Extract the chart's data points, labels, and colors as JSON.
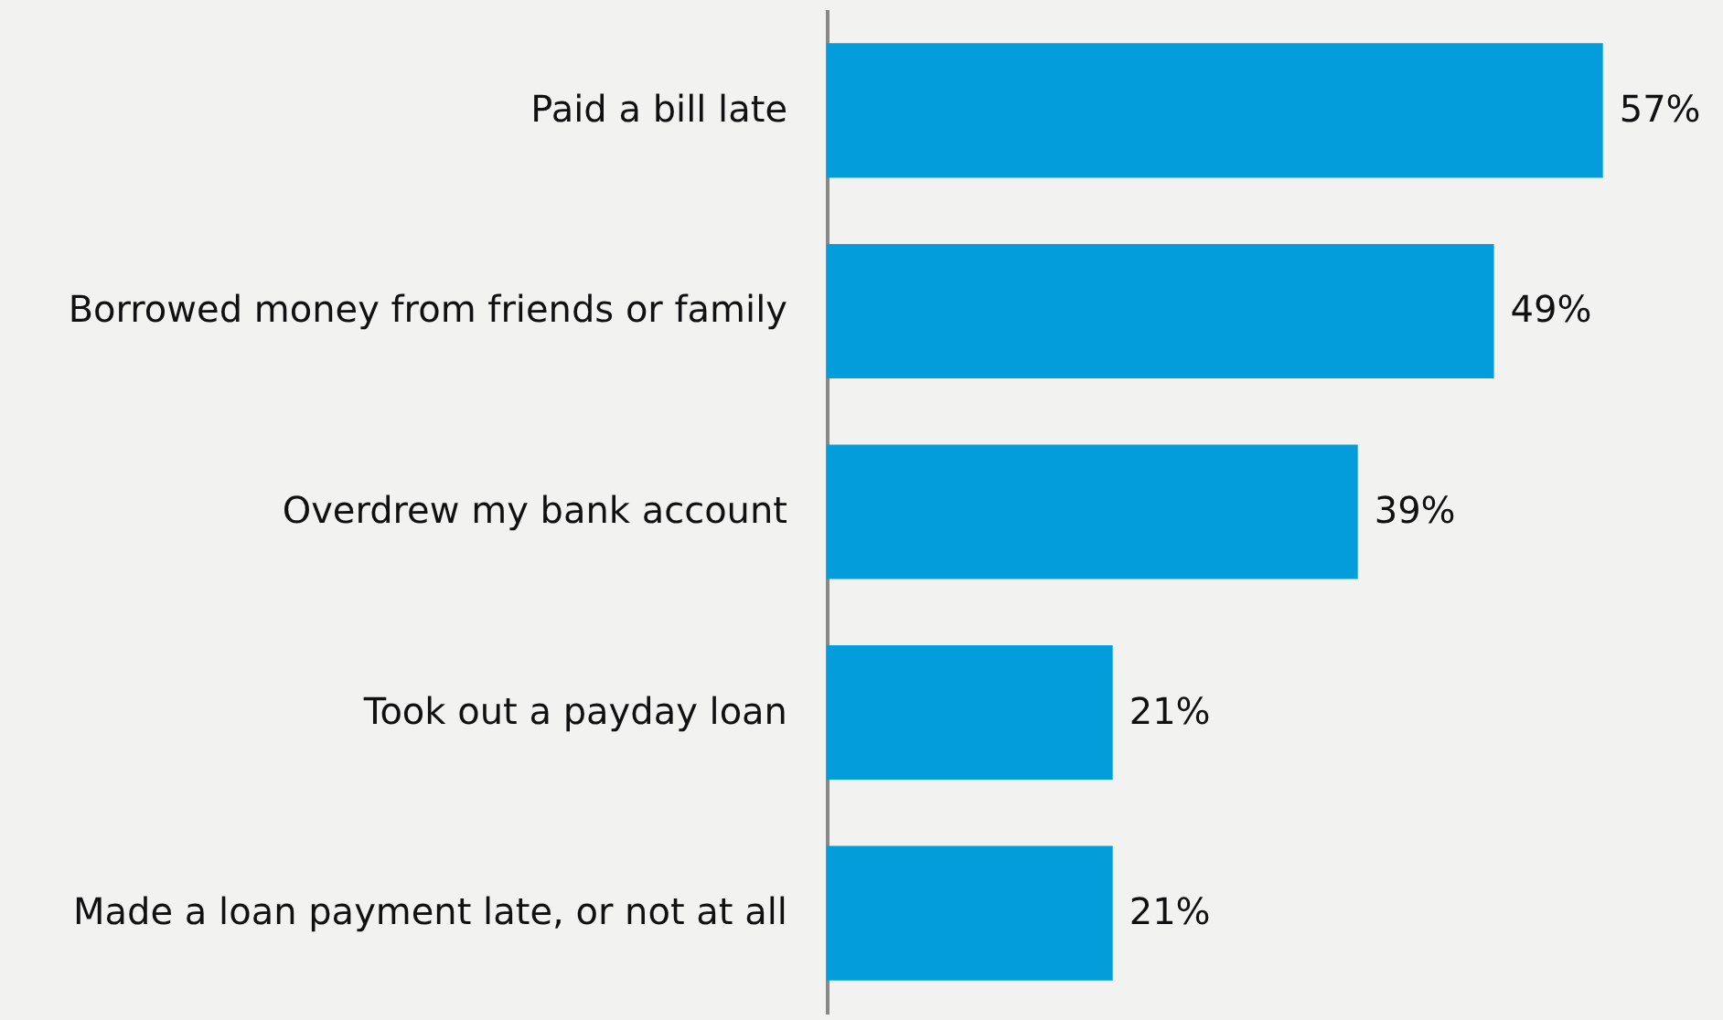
{
  "chart_data": {
    "type": "bar",
    "orientation": "horizontal",
    "categories": [
      "Paid a bill late",
      "Borrowed money from friends or family",
      "Overdrew my bank account",
      "Took out a payday loan",
      "Made a loan payment late, or not at all"
    ],
    "values": [
      57,
      49,
      39,
      21,
      21
    ],
    "value_labels": [
      "57%",
      "49%",
      "39%",
      "21%",
      "21%"
    ],
    "color": "#039ddb"
  }
}
